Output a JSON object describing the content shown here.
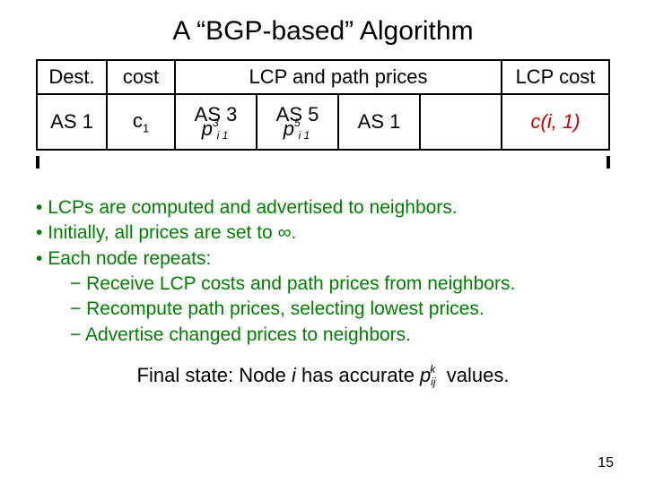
{
  "title": "A “BGP-based” Algorithm",
  "table": {
    "headers": {
      "dest": "Dest.",
      "cost": "cost",
      "lcp_path": "LCP and path prices",
      "lcp_cost": "LCP cost"
    },
    "subheaders": {
      "as3": "AS 3",
      "as5": "AS 5",
      "as1": "AS 1"
    },
    "row": {
      "dest": "AS 1",
      "cost_base": "c",
      "cost_sub": "1",
      "p_base": "p",
      "p_sub": "i 1",
      "p3_sup": "3",
      "p5_sup": "5",
      "lcp_val": "c(i, 1)"
    }
  },
  "bullets": {
    "b1": "LCPs are computed and advertised to neighbors.",
    "b2": "Initially, all prices are set to ∞.",
    "b3": "Each node repeats:",
    "s1": "Receive LCP costs and path prices from neighbors.",
    "s2": "Recompute path prices, selecting lowest prices.",
    "s3": "Advertise changed prices to neighbors."
  },
  "final": {
    "pre": "Final state: Node ",
    "i": "i",
    "mid": " has accurate ",
    "p": "p",
    "sup": "k",
    "sub": "ij",
    "post": " values."
  },
  "pagenum": "15",
  "colors": {
    "bullet_color": "#008000",
    "lcp_color": "#cc0000",
    "text": "#000000",
    "bg": "#ffffff"
  }
}
